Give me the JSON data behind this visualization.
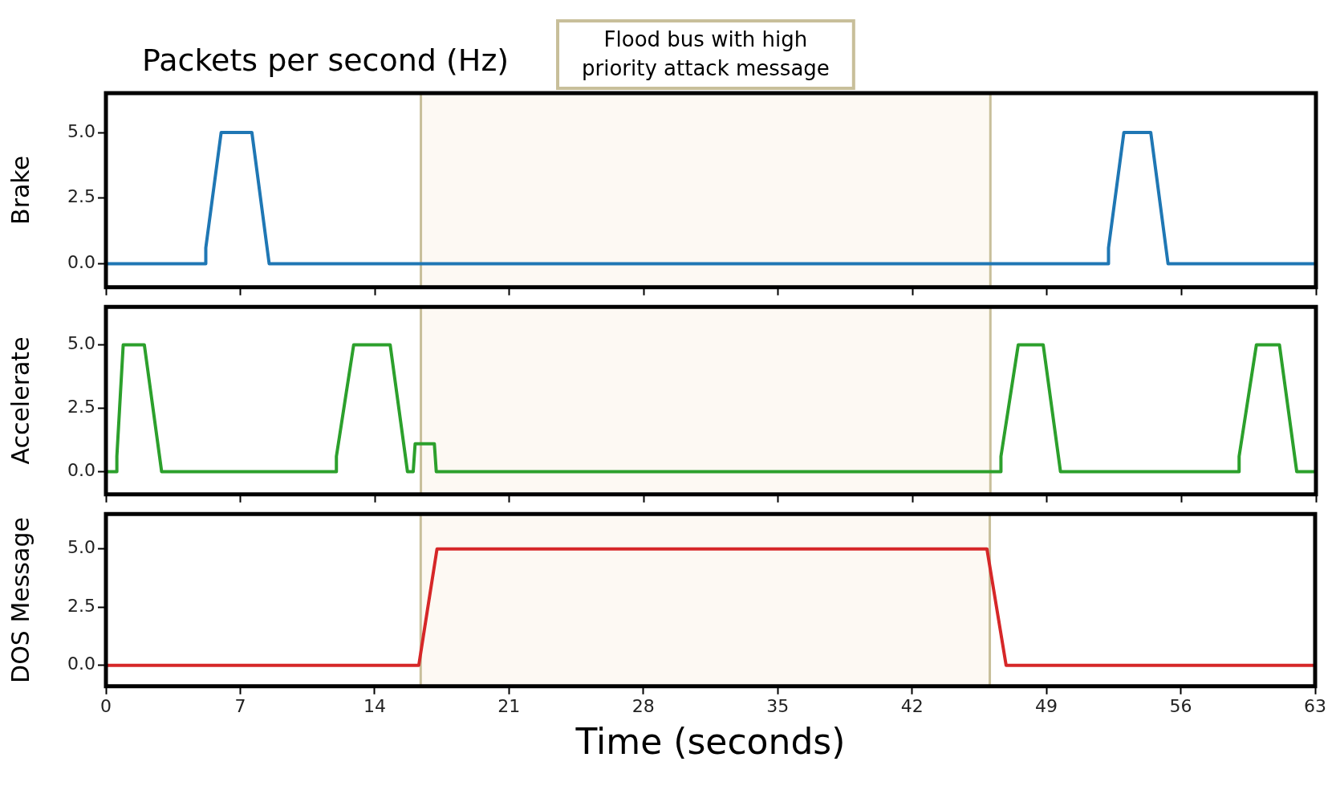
{
  "chart_data": [
    {
      "type": "line",
      "title": "Packets per second (Hz)",
      "ylabel": "Brake",
      "x": [
        0,
        5.2,
        5.2,
        6.0,
        7.6,
        8.5,
        52.2,
        52.2,
        53.0,
        54.4,
        55.3,
        63
      ],
      "values": [
        0,
        0,
        0.6,
        5,
        5,
        0,
        0,
        0.6,
        5,
        5,
        0,
        0
      ],
      "color": "#1f77b4",
      "xlim": [
        0,
        63
      ],
      "xticks": [
        0,
        7,
        14,
        21,
        28,
        35,
        42,
        49,
        56,
        63
      ],
      "ylim": [
        -0.9,
        6.5
      ],
      "yticks": [
        {
          "value": 0,
          "label": "0.0"
        },
        {
          "value": 2.5,
          "label": "2.5"
        },
        {
          "value": 5,
          "label": "5.0"
        }
      ],
      "tick_labels": "y",
      "bands": [
        {
          "axis": "x",
          "from": 16.4,
          "to": 46.05,
          "label": "Flood bus with high priority attack message",
          "color": "#fdf9f3"
        }
      ]
    },
    {
      "type": "line",
      "ylabel": "Accelerate",
      "x": [
        0,
        0.57,
        0.57,
        0.9,
        2.0,
        2.9,
        12.0,
        12.0,
        12.9,
        14.8,
        15.7,
        16.0,
        16.1,
        17.1,
        17.2,
        46.6,
        46.6,
        47.5,
        48.8,
        49.7,
        59.0,
        59.0,
        59.9,
        61.1,
        62.0,
        63
      ],
      "values": [
        0,
        0,
        0.6,
        5,
        5,
        0,
        0,
        0.6,
        5,
        5,
        0,
        0,
        1.1,
        1.1,
        0,
        0,
        0.6,
        5,
        5,
        0,
        0,
        0.6,
        5,
        5,
        0,
        0
      ],
      "color": "#2ca02c",
      "xlim": [
        0,
        63
      ],
      "xticks": [
        0,
        7,
        14,
        21,
        28,
        35,
        42,
        49,
        56,
        63
      ],
      "ylim": [
        -0.9,
        6.5
      ],
      "yticks": [
        {
          "value": 0,
          "label": "0.0"
        },
        {
          "value": 2.5,
          "label": "2.5"
        },
        {
          "value": 5,
          "label": "5.0"
        }
      ],
      "tick_labels": "y",
      "bands": [
        {
          "axis": "x",
          "from": 16.4,
          "to": 46.05,
          "color": "#fdf9f3"
        }
      ]
    },
    {
      "type": "line",
      "ylabel": "DOS Message",
      "xlabel": "Time (seconds)",
      "x": [
        0,
        16.3,
        17.25,
        45.9,
        46.9,
        63
      ],
      "values": [
        0,
        0,
        5,
        5,
        0,
        0
      ],
      "color": "#d62728",
      "xlim": [
        0,
        63
      ],
      "xticks": [
        0,
        7,
        14,
        21,
        28,
        35,
        42,
        49,
        56,
        63
      ],
      "ylim": [
        -0.9,
        6.5
      ],
      "yticks": [
        {
          "value": 0,
          "label": "0.0"
        },
        {
          "value": 2.5,
          "label": "2.5"
        },
        {
          "value": 5,
          "label": "5.0"
        }
      ],
      "bands": [
        {
          "axis": "x",
          "from": 16.4,
          "to": 46.05,
          "color": "#fdf9f3"
        }
      ]
    }
  ]
}
